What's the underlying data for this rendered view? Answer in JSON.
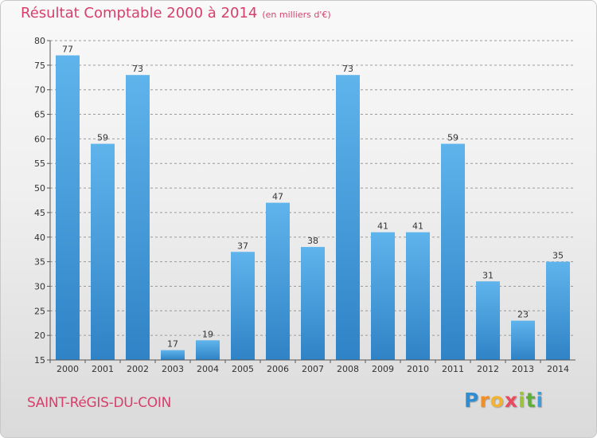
{
  "header": {
    "title": "Résultat Comptable 2000 à 2014",
    "unit": "(en milliers d'€)"
  },
  "footer": {
    "commune": "SAINT-RéGIS-DU-COIN",
    "brand": "Proxiti",
    "brand_letters": [
      "P",
      "r",
      "o",
      "x",
      "i",
      "t",
      "i"
    ]
  },
  "colors": {
    "title": "#d63f6b",
    "bar_light": "#5fb4ec",
    "bar_dark": "#2f83c6",
    "axis": "#555555",
    "grid": "#9a9a9a"
  },
  "chart_data": {
    "type": "bar",
    "title": "Résultat Comptable 2000 à 2014",
    "subtitle": "(en milliers d'€)",
    "xlabel": "",
    "ylabel": "",
    "ylim": [
      15,
      80
    ],
    "yticks": [
      15,
      20,
      25,
      30,
      35,
      40,
      45,
      50,
      55,
      60,
      65,
      70,
      75,
      80
    ],
    "grid": "horizontal dashed",
    "categories": [
      "2000",
      "2001",
      "2002",
      "2003",
      "2004",
      "2005",
      "2006",
      "2007",
      "2008",
      "2009",
      "2010",
      "2011",
      "2012",
      "2013",
      "2014"
    ],
    "values": [
      77,
      59,
      73,
      17,
      19,
      37,
      47,
      38,
      73,
      41,
      41,
      59,
      31,
      23,
      35
    ]
  }
}
